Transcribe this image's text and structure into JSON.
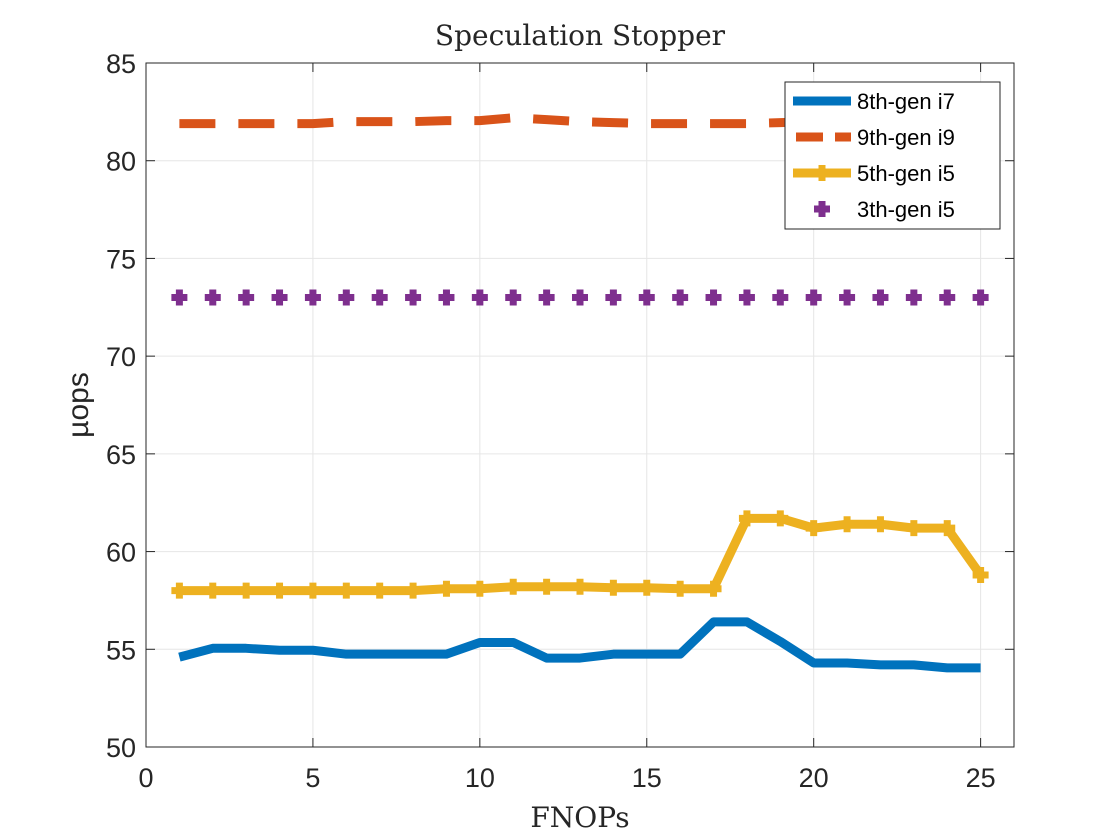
{
  "chart_data": {
    "type": "line",
    "title": "Speculation Stopper",
    "xlabel": "FNOPs",
    "ylabel": "µops",
    "xlim": [
      0,
      26
    ],
    "ylim": [
      50,
      85
    ],
    "xticks": [
      0,
      5,
      10,
      15,
      20,
      25
    ],
    "yticks": [
      50,
      55,
      60,
      65,
      70,
      75,
      80,
      85
    ],
    "grid": true,
    "legend_position": "top-right",
    "x": [
      1,
      2,
      3,
      4,
      5,
      6,
      7,
      8,
      9,
      10,
      11,
      12,
      13,
      14,
      15,
      16,
      17,
      18,
      19,
      20,
      21,
      22,
      23,
      24,
      25
    ],
    "series": [
      {
        "name": "8th-gen i7",
        "color": "#0072BD",
        "style": "solid",
        "marker": "none",
        "values": [
          54.6,
          55.05,
          55.05,
          54.95,
          54.95,
          54.75,
          54.75,
          54.75,
          54.75,
          55.35,
          55.35,
          54.55,
          54.55,
          54.75,
          54.75,
          54.75,
          56.4,
          56.4,
          55.4,
          54.3,
          54.3,
          54.2,
          54.2,
          54.05,
          54.05
        ]
      },
      {
        "name": "9th-gen i9",
        "color": "#D95319",
        "style": "dashed",
        "marker": "none",
        "values": [
          81.9,
          81.9,
          81.9,
          81.9,
          81.9,
          82.0,
          82.0,
          82.0,
          82.05,
          82.05,
          82.2,
          82.1,
          82.0,
          81.95,
          81.9,
          81.9,
          81.9,
          81.9,
          81.95,
          82.0,
          82.0,
          82.0,
          82.0,
          82.0,
          82.0
        ]
      },
      {
        "name": "5th-gen i5",
        "color": "#EDB120",
        "style": "solid",
        "marker": "plus",
        "values": [
          58.0,
          58.0,
          58.0,
          58.0,
          58.0,
          58.0,
          58.0,
          58.0,
          58.1,
          58.1,
          58.2,
          58.2,
          58.2,
          58.15,
          58.15,
          58.1,
          58.1,
          61.7,
          61.7,
          61.2,
          61.4,
          61.4,
          61.2,
          61.2,
          58.8
        ]
      },
      {
        "name": "3th-gen i5",
        "color": "#7E2F8E",
        "style": "none",
        "marker": "plus",
        "values": [
          73,
          73,
          73,
          73,
          73,
          73,
          73,
          73,
          73,
          73,
          73,
          73,
          73,
          73,
          73,
          73,
          73,
          73,
          73,
          73,
          73,
          73,
          73,
          73,
          73
        ]
      }
    ]
  }
}
